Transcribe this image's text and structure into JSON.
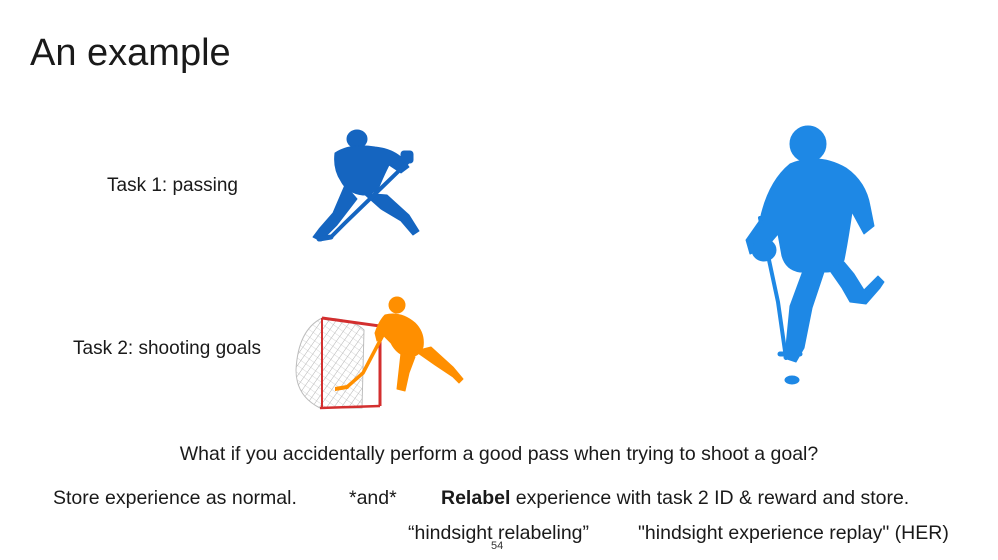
{
  "slide": {
    "title": "An example",
    "task1_label": "Task 1: passing",
    "task2_label": "Task 2: shooting goals",
    "question": "What if you accidentally perform a good pass when trying to shoot a goal?",
    "store_normal": "Store experience as normal.",
    "and_marker": "*and*",
    "relabel_bold": "Relabel",
    "relabel_rest": " experience with task 2 ID & reward and store.",
    "hindsight_relabeling": "“hindsight relabeling”",
    "her_label": "\"hindsight experience replay\" (HER)",
    "page_number": "54"
  },
  "colors": {
    "passing_player": "#1565c0",
    "shooting_player": "#ff8f00",
    "big_player": "#1e88e5",
    "goal_frame": "#d32f2f",
    "text": "#1a1a1a"
  },
  "icons": {
    "passing": "hockey-player-silhouette-icon",
    "shooting": "hockey-player-shooting-icon",
    "goal": "hockey-goal-net-icon",
    "big": "hockey-player-large-silhouette-icon"
  }
}
